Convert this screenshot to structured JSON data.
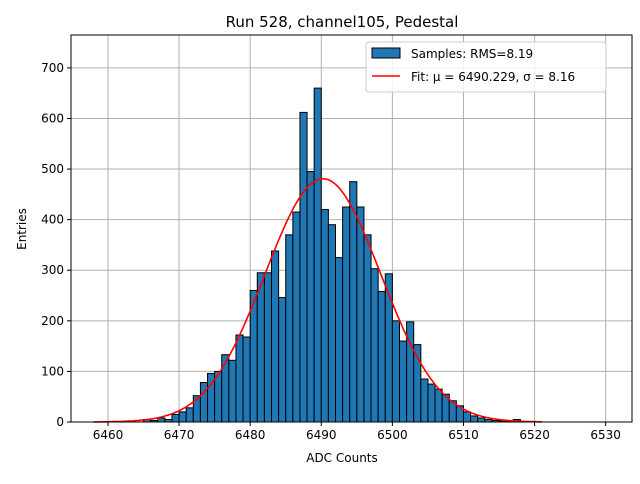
{
  "chart_data": {
    "type": "bar",
    "title": "Run 528, channel105, Pedestal",
    "xlabel": "ADC Counts",
    "ylabel": "Entries",
    "xlim": [
      6454.8,
      6533.7
    ],
    "ylim": [
      0,
      765
    ],
    "xticks": [
      6460,
      6470,
      6480,
      6490,
      6500,
      6510,
      6520,
      6530
    ],
    "yticks": [
      0,
      100,
      200,
      300,
      400,
      500,
      600,
      700
    ],
    "grid": true,
    "bin_width": 1,
    "bin_starts": [
      6465,
      6466,
      6467,
      6468,
      6469,
      6470,
      6471,
      6472,
      6473,
      6474,
      6475,
      6476,
      6477,
      6478,
      6479,
      6480,
      6481,
      6482,
      6483,
      6484,
      6485,
      6486,
      6487,
      6488,
      6489,
      6490,
      6491,
      6492,
      6493,
      6494,
      6495,
      6496,
      6497,
      6498,
      6499,
      6500,
      6501,
      6502,
      6503,
      6504,
      6505,
      6506,
      6507,
      6508,
      6509,
      6510,
      6511,
      6512,
      6513,
      6514,
      6515,
      6516,
      6517
    ],
    "values": [
      5,
      3,
      8,
      5,
      15,
      20,
      28,
      52,
      78,
      96,
      100,
      133,
      122,
      172,
      168,
      260,
      295,
      295,
      338,
      246,
      370,
      415,
      612,
      495,
      660,
      420,
      390,
      325,
      425,
      475,
      425,
      370,
      303,
      258,
      293,
      200,
      160,
      198,
      153,
      85,
      75,
      65,
      55,
      42,
      32,
      20,
      12,
      8,
      5,
      3,
      2,
      2,
      5
    ],
    "fit": {
      "mu": 6490.229,
      "sigma": 8.16,
      "amplitude": 481,
      "range": [
        6458,
        6521
      ]
    },
    "legend": {
      "placement": "top-right",
      "entries": [
        {
          "label": "Samples: RMS=8.19",
          "color": "#1f77b4"
        },
        {
          "label": "Fit: μ = 6490.229, σ = 8.16",
          "color": "#ff0000"
        }
      ]
    },
    "colors": {
      "bar": "#1f77b4",
      "fit": "#ff0000",
      "grid": "#b0b0b0"
    }
  }
}
